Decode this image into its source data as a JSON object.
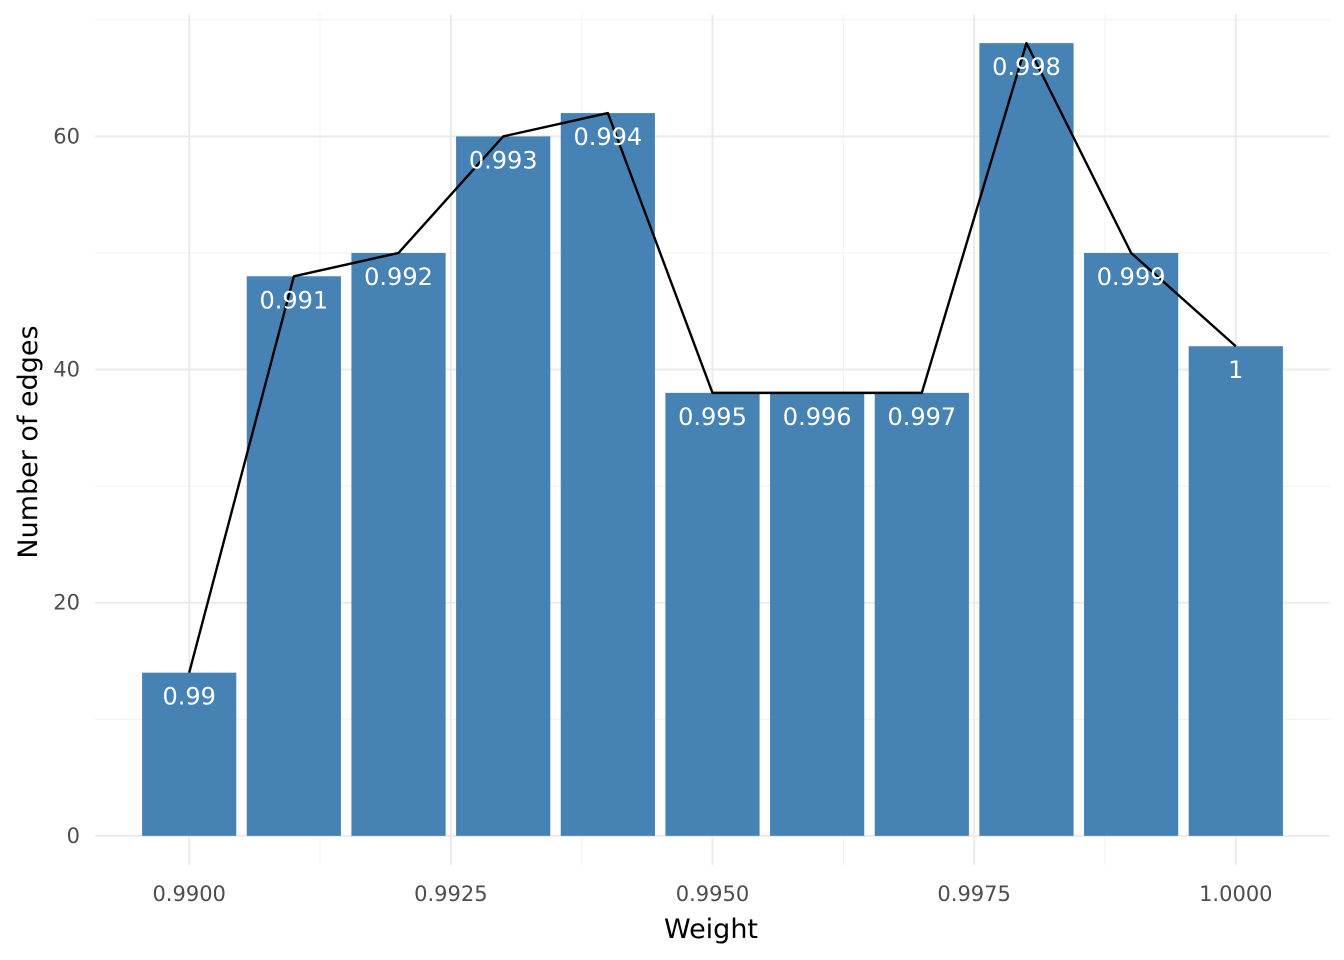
{
  "chart_data": {
    "type": "bar",
    "xlabel": "Weight",
    "ylabel": "Number of edges",
    "x": [
      0.99,
      0.991,
      0.992,
      0.993,
      0.994,
      0.995,
      0.996,
      0.997,
      0.998,
      0.999,
      1.0
    ],
    "values": [
      14,
      48,
      50,
      60,
      62,
      38,
      38,
      38,
      68,
      50,
      42
    ],
    "bar_labels": [
      "0.99",
      "0.991",
      "0.992",
      "0.993",
      "0.994",
      "0.995",
      "0.996",
      "0.997",
      "0.998",
      "0.999",
      "1"
    ],
    "overlay_line": {
      "type": "line",
      "values": [
        14,
        48,
        50,
        60,
        62,
        38,
        38,
        38,
        68,
        50,
        42
      ],
      "color": "#000000"
    },
    "xlim": [
      0.9891,
      1.0009
    ],
    "ylim": [
      -2.5,
      70.5
    ],
    "x_ticks": [
      0.99,
      0.9925,
      0.995,
      0.9975,
      1.0
    ],
    "x_tick_labels": [
      "0.9900",
      "0.9925",
      "0.9950",
      "0.9975",
      "1.0000"
    ],
    "y_ticks": [
      0,
      20,
      40,
      60
    ],
    "y_tick_labels": [
      "0",
      "20",
      "40",
      "60"
    ],
    "bar_color": "#4682B4",
    "grid": true,
    "legend": "none"
  }
}
